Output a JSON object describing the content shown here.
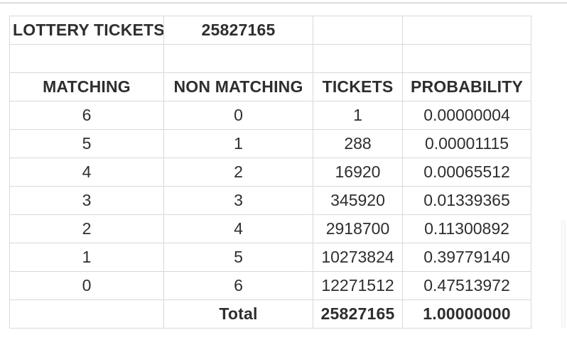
{
  "summary": {
    "label": "LOTTERY TICKETS",
    "value": "25827165"
  },
  "table": {
    "headers": [
      "MATCHING",
      "NON MATCHING",
      "TICKETS",
      "PROBABILITY"
    ],
    "rows": [
      [
        "6",
        "0",
        "1",
        "0.00000004"
      ],
      [
        "5",
        "1",
        "288",
        "0.00001115"
      ],
      [
        "4",
        "2",
        "16920",
        "0.00065512"
      ],
      [
        "3",
        "3",
        "345920",
        "0.01339365"
      ],
      [
        "2",
        "4",
        "2918700",
        "0.11300892"
      ],
      [
        "1",
        "5",
        "10273824",
        "0.39779140"
      ],
      [
        "0",
        "6",
        "12271512",
        "0.47513972"
      ]
    ],
    "total_row": {
      "label": "Total",
      "tickets": "25827165",
      "probability": "1.00000000"
    }
  },
  "colors": {
    "background": "#ffffff",
    "text": "#2e2e2e",
    "border": "#d9d9d9",
    "top_divider": "#dcdcdc"
  }
}
